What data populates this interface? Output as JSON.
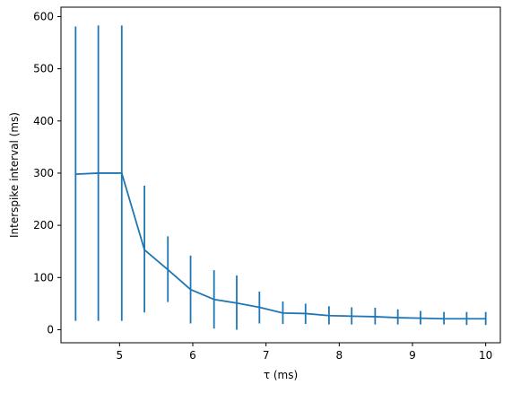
{
  "chart_data": {
    "type": "line",
    "title": "",
    "xlabel": "τ (ms)",
    "ylabel": "Interspike interval (ms)",
    "xlim": [
      4.2,
      10.2
    ],
    "ylim": [
      -25,
      618
    ],
    "xticks": [
      5,
      6,
      7,
      8,
      9,
      10
    ],
    "yticks": [
      0,
      100,
      200,
      300,
      400,
      500,
      600
    ],
    "grid": false,
    "legend": "none",
    "series": [
      {
        "x": [
          4.4,
          4.71,
          5.03,
          5.34,
          5.66,
          5.97,
          6.29,
          6.6,
          6.91,
          7.23,
          7.54,
          7.86,
          8.17,
          8.49,
          8.8,
          9.11,
          9.43,
          9.74,
          10.0
        ],
        "values": [
          298,
          300,
          300,
          153,
          115,
          77,
          58,
          51,
          43,
          32,
          31,
          27,
          26,
          25,
          23,
          22,
          21,
          21,
          21
        ],
        "err_low": [
          17,
          17,
          17,
          33,
          53,
          12,
          2,
          0,
          12,
          11,
          11,
          10,
          10,
          10,
          10,
          10,
          10,
          9,
          9
        ],
        "err_high": [
          581,
          583,
          583,
          276,
          179,
          142,
          114,
          104,
          73,
          54,
          50,
          45,
          43,
          42,
          39,
          36,
          34,
          34,
          34
        ]
      }
    ],
    "colors": {
      "series": "#1f77b4",
      "axes": "#000000"
    }
  }
}
